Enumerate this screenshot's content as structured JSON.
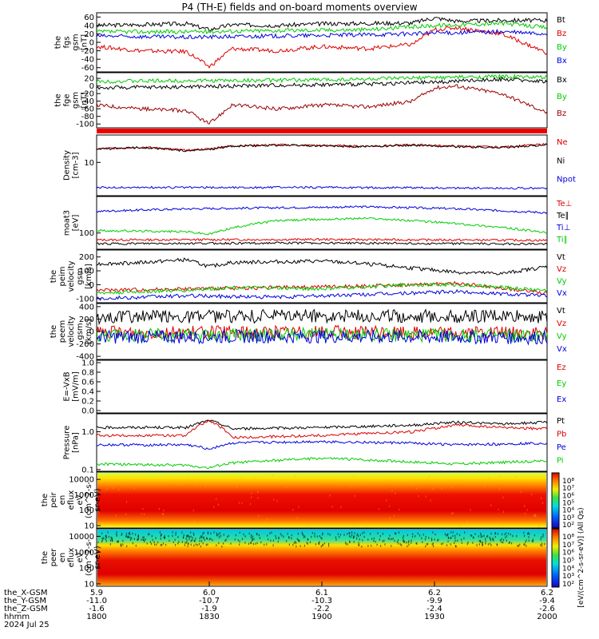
{
  "title": "P4 (TH-E) fields and on-board moments overview",
  "axis": {
    "x_rows": [
      {
        "label": "the_X-GSM",
        "values": [
          "5.9",
          "6.0",
          "6.1",
          "6.2",
          "6.2"
        ]
      },
      {
        "label": "the_Y-GSM",
        "values": [
          "-11.0",
          "-10.7",
          "-10.3",
          "-9.9",
          "-9.4"
        ]
      },
      {
        "label": "the_Z-GSM",
        "values": [
          "-1.6",
          "-1.9",
          "-2.2",
          "-2.4",
          "-2.6"
        ]
      },
      {
        "label": "hhmm",
        "values": [
          "1800",
          "1830",
          "1900",
          "1930",
          "2000"
        ]
      }
    ],
    "date": "2024 Jul 25",
    "colorbar_label": "[eV/(cm^2-s-sr-eV)] (All Qs)"
  },
  "colors": {
    "black": "#000000",
    "red": "#dd0000",
    "green": "#00cc00",
    "blue": "#0000dd",
    "darkred": "#990000"
  },
  "chart_data": [
    {
      "type": "line",
      "ylabel": [
        "the",
        "fgs",
        "gsm",
        "[nT]"
      ],
      "yticks": [
        "60",
        "40",
        "20",
        "0",
        "-20",
        "-40",
        "-60"
      ],
      "ylim": [
        -70,
        70
      ],
      "legend": [
        "Bt",
        "Bz",
        "By",
        "Bx"
      ],
      "series": [
        {
          "name": "Bt",
          "color": "#000000",
          "x": [
            0,
            0.1,
            0.2,
            0.25,
            0.3,
            0.4,
            0.5,
            0.6,
            0.7,
            0.75,
            0.8,
            0.9,
            1
          ],
          "y": [
            40,
            42,
            44,
            30,
            42,
            40,
            44,
            45,
            46,
            58,
            50,
            52,
            52
          ]
        },
        {
          "name": "Bz",
          "color": "#dd0000",
          "x": [
            0,
            0.1,
            0.2,
            0.25,
            0.3,
            0.4,
            0.5,
            0.6,
            0.7,
            0.75,
            0.8,
            0.9,
            1
          ],
          "y": [
            -10,
            -20,
            -22,
            -58,
            -15,
            -20,
            -10,
            -15,
            -5,
            30,
            35,
            20,
            -25
          ]
        },
        {
          "name": "By",
          "color": "#00cc00",
          "x": [
            0,
            0.2,
            0.4,
            0.6,
            0.75,
            0.9,
            1
          ],
          "y": [
            25,
            25,
            28,
            30,
            40,
            45,
            35
          ]
        },
        {
          "name": "Bx",
          "color": "#0000dd",
          "x": [
            0,
            0.2,
            0.4,
            0.6,
            0.75,
            0.9,
            1
          ],
          "y": [
            15,
            12,
            15,
            18,
            22,
            25,
            20
          ]
        }
      ]
    },
    {
      "type": "line",
      "ylabel": [
        "the",
        "fge",
        "gsm",
        "[nT]"
      ],
      "yticks": [
        "20",
        "0",
        "-20",
        "-40",
        "-60",
        "-80",
        "-100"
      ],
      "ylim": [
        -110,
        35
      ],
      "legend": [
        "Bx",
        "By",
        "Bz"
      ],
      "series": [
        {
          "name": "Bx",
          "color": "#000000",
          "x": [
            0,
            0.2,
            0.4,
            0.6,
            0.75,
            0.9,
            1
          ],
          "y": [
            -5,
            -2,
            2,
            5,
            10,
            18,
            12
          ]
        },
        {
          "name": "By",
          "color": "#00cc00",
          "x": [
            0,
            0.2,
            0.4,
            0.6,
            0.75,
            0.9,
            1
          ],
          "y": [
            12,
            14,
            15,
            18,
            22,
            25,
            22
          ]
        },
        {
          "name": "Bz",
          "color": "#990000",
          "x": [
            0,
            0.1,
            0.2,
            0.25,
            0.3,
            0.4,
            0.5,
            0.6,
            0.7,
            0.75,
            0.8,
            0.9,
            1
          ],
          "y": [
            -50,
            -60,
            -65,
            -100,
            -50,
            -60,
            -50,
            -55,
            -40,
            -5,
            0,
            -20,
            -70
          ]
        }
      ]
    },
    {
      "type": "line",
      "ylabel": [
        "Density",
        "[cm-3]"
      ],
      "yticks": [
        "10"
      ],
      "ylim": [
        0.8,
        80
      ],
      "log": true,
      "legend": [
        "Ne",
        "Ni",
        "Npot"
      ],
      "series": [
        {
          "name": "Ne",
          "color": "#dd0000",
          "x": [
            0,
            0.1,
            0.2,
            0.25,
            0.3,
            0.4,
            0.5,
            0.6,
            0.7,
            0.8,
            0.9,
            1
          ],
          "y": [
            28,
            32,
            25,
            28,
            35,
            38,
            36,
            34,
            38,
            34,
            32,
            40
          ]
        },
        {
          "name": "Ni",
          "color": "#000000",
          "x": [
            0,
            0.1,
            0.2,
            0.25,
            0.3,
            0.4,
            0.5,
            0.6,
            0.7,
            0.8,
            0.9,
            1
          ],
          "y": [
            27,
            31,
            24,
            27,
            34,
            37,
            35,
            33,
            37,
            33,
            31,
            38
          ]
        },
        {
          "name": "Npot",
          "color": "#0000dd",
          "x": [
            0,
            0.5,
            1
          ],
          "y": [
            1.5,
            1.5,
            1.4
          ]
        }
      ]
    },
    {
      "type": "line",
      "ylabel": [
        "moat3",
        "[eV]"
      ],
      "yticks": [
        "100"
      ],
      "ylim": [
        30,
        1500
      ],
      "log": true,
      "legend": [
        "Te⊥",
        "Te∥",
        "Ti⊥",
        "Ti∥"
      ],
      "series": [
        {
          "name": "Te⊥",
          "color": "#dd0000",
          "x": [
            0,
            0.5,
            1
          ],
          "y": [
            60,
            62,
            58
          ]
        },
        {
          "name": "Te∥",
          "color": "#000000",
          "x": [
            0,
            0.5,
            1
          ],
          "y": [
            45,
            48,
            44
          ]
        },
        {
          "name": "Ti⊥",
          "color": "#0000dd",
          "x": [
            0,
            0.2,
            0.4,
            0.6,
            0.8,
            1
          ],
          "y": [
            500,
            600,
            650,
            700,
            600,
            450
          ]
        },
        {
          "name": "Ti∥",
          "color": "#00cc00",
          "x": [
            0,
            0.2,
            0.25,
            0.4,
            0.6,
            0.8,
            1
          ],
          "y": [
            120,
            110,
            90,
            250,
            300,
            200,
            100
          ]
        }
      ]
    },
    {
      "type": "line",
      "ylabel": [
        "the",
        "peim",
        "velocity",
        "gsm",
        "[km/s]"
      ],
      "yticks": [
        "200",
        "100",
        "0",
        "-100"
      ],
      "ylim": [
        -130,
        250
      ],
      "legend": [
        "Vt",
        "Vz",
        "Vy",
        "Vx"
      ],
      "series": [
        {
          "name": "Vt",
          "color": "#000000",
          "x": [
            0,
            0.1,
            0.2,
            0.25,
            0.3,
            0.5,
            0.6,
            0.7,
            0.8,
            0.9,
            1
          ],
          "y": [
            150,
            160,
            180,
            130,
            160,
            170,
            150,
            120,
            90,
            80,
            130
          ]
        },
        {
          "name": "Vz",
          "color": "#dd0000",
          "x": [
            0,
            0.2,
            0.4,
            0.6,
            0.8,
            1
          ],
          "y": [
            -40,
            -30,
            -20,
            -10,
            10,
            -60
          ]
        },
        {
          "name": "Vy",
          "color": "#00cc00",
          "x": [
            0,
            0.2,
            0.3,
            0.5,
            0.7,
            0.8,
            1
          ],
          "y": [
            -60,
            -40,
            -20,
            -30,
            0,
            0,
            -40
          ]
        },
        {
          "name": "Vx",
          "color": "#0000dd",
          "x": [
            0,
            0.2,
            0.4,
            0.6,
            0.8,
            1
          ],
          "y": [
            -100,
            -80,
            -90,
            -70,
            -50,
            -80
          ]
        }
      ]
    },
    {
      "type": "line",
      "ylabel": [
        "the",
        "peem",
        "velocity",
        "gsm",
        "[km/s]"
      ],
      "yticks": [
        "400",
        "200",
        "0",
        "-200",
        "-400"
      ],
      "ylim": [
        -450,
        450
      ],
      "legend": [
        "Vt",
        "Vz",
        "Vy",
        "Vx"
      ],
      "series": [
        {
          "name": "Vt",
          "color": "#000000",
          "x": [
            0,
            0.5,
            1
          ],
          "y": [
            230,
            250,
            240
          ]
        },
        {
          "name": "Vz",
          "color": "#dd0000",
          "x": [
            0,
            0.5,
            1
          ],
          "y": [
            -20,
            -10,
            -30
          ]
        },
        {
          "name": "Vy",
          "color": "#00cc00",
          "x": [
            0,
            0.5,
            1
          ],
          "y": [
            -60,
            -50,
            -70
          ]
        },
        {
          "name": "Vx",
          "color": "#0000dd",
          "x": [
            0,
            0.5,
            1
          ],
          "y": [
            -90,
            -80,
            -100
          ]
        }
      ]
    },
    {
      "type": "line",
      "ylabel": [
        "E=-VxB",
        "[mV/m]"
      ],
      "yticks": [
        "1.0",
        "0.8",
        "0.6",
        "0.4",
        "0.2",
        "0.0"
      ],
      "ylim": [
        -0.05,
        1.05
      ],
      "legend": [
        "Ez",
        "Ey",
        "Ex"
      ],
      "series": []
    },
    {
      "type": "line",
      "ylabel": [
        "Pressure",
        "[nPa]"
      ],
      "yticks": [
        "1.0",
        "0.1"
      ],
      "ylim": [
        0.09,
        3
      ],
      "log": true,
      "legend": [
        "Pt",
        "Pb",
        "Pe",
        "Pi"
      ],
      "series": [
        {
          "name": "Pt",
          "color": "#000000",
          "x": [
            0,
            0.2,
            0.25,
            0.3,
            0.5,
            0.7,
            0.8,
            0.9,
            1
          ],
          "y": [
            1.3,
            1.3,
            2.0,
            1.2,
            1.3,
            1.5,
            1.8,
            1.6,
            1.8
          ]
        },
        {
          "name": "Pb",
          "color": "#dd0000",
          "x": [
            0,
            0.2,
            0.25,
            0.3,
            0.5,
            0.7,
            0.8,
            0.9,
            1
          ],
          "y": [
            0.8,
            0.8,
            2.0,
            0.7,
            0.8,
            1.0,
            1.5,
            1.3,
            1.2
          ]
        },
        {
          "name": "Pe",
          "color": "#0000dd",
          "x": [
            0,
            0.2,
            0.25,
            0.3,
            0.5,
            0.7,
            0.8,
            1
          ],
          "y": [
            0.45,
            0.45,
            0.35,
            0.5,
            0.55,
            0.5,
            0.45,
            0.5
          ]
        },
        {
          "name": "Pi",
          "color": "#00cc00",
          "x": [
            0,
            0.2,
            0.25,
            0.3,
            0.5,
            0.7,
            0.8,
            1
          ],
          "y": [
            0.14,
            0.13,
            0.11,
            0.15,
            0.2,
            0.16,
            0.14,
            0.17
          ]
        }
      ]
    },
    {
      "type": "heatmap",
      "ylabel": [
        "the",
        "peir",
        "en",
        "eflux",
        "eV",
        "(cm^2-s-",
        "sr-eV)"
      ],
      "yticks": [
        "10000",
        "1000",
        "100",
        "10"
      ],
      "ylim": [
        7,
        30000
      ],
      "log": true
    },
    {
      "type": "heatmap",
      "ylabel": [
        "the",
        "peer",
        "en",
        "eflux",
        "eV",
        "(cm^2-s-",
        "sr-eV)"
      ],
      "yticks": [
        "10000",
        "1000",
        "100",
        "10"
      ],
      "ylim": [
        7,
        30000
      ],
      "log": true
    }
  ],
  "colorbars": [
    {
      "ticks": [
        "10⁸",
        "10⁷",
        "10⁶",
        "10⁵",
        "10⁴",
        "10³",
        "10²"
      ]
    },
    {
      "ticks": [
        "10⁸",
        "10⁷",
        "10⁶",
        "10⁵",
        "10⁴",
        "10³",
        "10²"
      ]
    }
  ]
}
